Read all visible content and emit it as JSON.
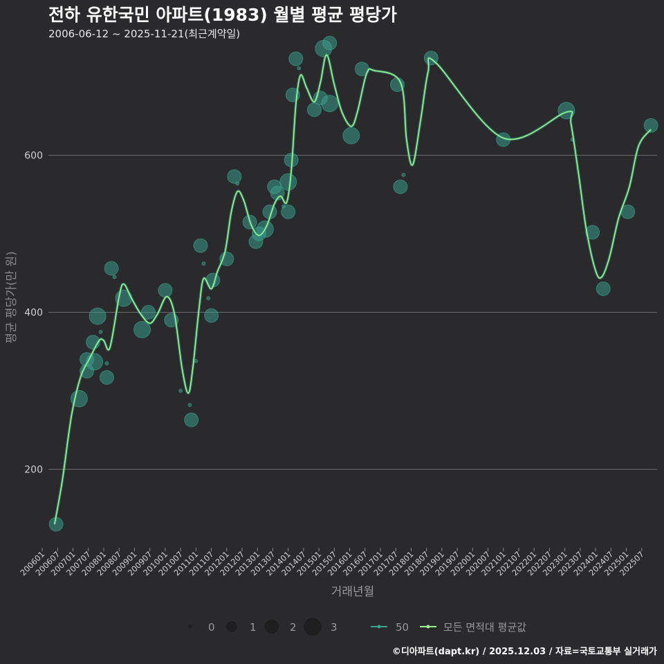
{
  "title": "전하 유한국민 아파트(1983) 월별 평균 평당가",
  "subtitle": "2006-06-12 ~ 2025-11-21(최근계약일)",
  "credit": "©디아파트(dapt.kr) / 2025.12.03 / 자료=국토교통부 실거래가",
  "colors": {
    "background": "#2a2a2c",
    "grid": "#6b6b6b",
    "point": "#3aa391",
    "line": "#9af58a"
  },
  "chart_data": {
    "type": "scatter",
    "title": "전하 유한국민 아파트(1983) 월별 평균 평당가",
    "xlabel": "거래년월",
    "ylabel": "평균 평당가(만 원)",
    "xlim": [
      2006.2,
      2026.0
    ],
    "ylim": [
      100,
      745
    ],
    "yticks": [
      200,
      400,
      600
    ],
    "xticks": [
      {
        "label": "200601",
        "x": 2006.0
      },
      {
        "label": "200607",
        "x": 2006.5
      },
      {
        "label": "200701",
        "x": 2007.0
      },
      {
        "label": "200707",
        "x": 2007.5
      },
      {
        "label": "200801",
        "x": 2008.0
      },
      {
        "label": "200807",
        "x": 2008.5
      },
      {
        "label": "200901",
        "x": 2009.0
      },
      {
        "label": "200907",
        "x": 2009.5
      },
      {
        "label": "201001",
        "x": 2010.0
      },
      {
        "label": "201007",
        "x": 2010.5
      },
      {
        "label": "201101",
        "x": 2011.0
      },
      {
        "label": "201107",
        "x": 2011.5
      },
      {
        "label": "201201",
        "x": 2012.0
      },
      {
        "label": "201207",
        "x": 2012.5
      },
      {
        "label": "201301",
        "x": 2013.0
      },
      {
        "label": "201307",
        "x": 2013.5
      },
      {
        "label": "201401",
        "x": 2014.0
      },
      {
        "label": "201407",
        "x": 2014.5
      },
      {
        "label": "201501",
        "x": 2015.0
      },
      {
        "label": "201507",
        "x": 2015.5
      },
      {
        "label": "201601",
        "x": 2016.0
      },
      {
        "label": "201607",
        "x": 2016.5
      },
      {
        "label": "201701",
        "x": 2017.0
      },
      {
        "label": "201707",
        "x": 2017.5
      },
      {
        "label": "201801",
        "x": 2018.0
      },
      {
        "label": "201807",
        "x": 2018.5
      },
      {
        "label": "201901",
        "x": 2019.0
      },
      {
        "label": "201907",
        "x": 2019.5
      },
      {
        "label": "202001",
        "x": 2020.0
      },
      {
        "label": "202007",
        "x": 2020.5
      },
      {
        "label": "202101",
        "x": 2021.0
      },
      {
        "label": "202107",
        "x": 2021.5
      },
      {
        "label": "202201",
        "x": 2022.0
      },
      {
        "label": "202207",
        "x": 2022.5
      },
      {
        "label": "202301",
        "x": 2023.0
      },
      {
        "label": "202307",
        "x": 2023.5
      },
      {
        "label": "202401",
        "x": 2024.0
      },
      {
        "label": "202407",
        "x": 2024.5
      },
      {
        "label": "202501",
        "x": 2025.0
      },
      {
        "label": "202507",
        "x": 2025.5
      }
    ],
    "points": [
      {
        "x": 2006.45,
        "y": 130,
        "n": 2
      },
      {
        "x": 2007.2,
        "y": 290,
        "n": 3
      },
      {
        "x": 2007.45,
        "y": 325,
        "n": 2
      },
      {
        "x": 2007.45,
        "y": 340,
        "n": 2
      },
      {
        "x": 2007.65,
        "y": 362,
        "n": 2
      },
      {
        "x": 2007.7,
        "y": 337,
        "n": 3
      },
      {
        "x": 2007.8,
        "y": 395,
        "n": 3
      },
      {
        "x": 2007.9,
        "y": 375,
        "n": 0
      },
      {
        "x": 2008.1,
        "y": 335,
        "n": 0
      },
      {
        "x": 2008.1,
        "y": 317,
        "n": 2
      },
      {
        "x": 2008.25,
        "y": 456,
        "n": 2
      },
      {
        "x": 2008.35,
        "y": 445,
        "n": 0
      },
      {
        "x": 2008.65,
        "y": 418,
        "n": 3
      },
      {
        "x": 2009.25,
        "y": 378,
        "n": 3
      },
      {
        "x": 2009.45,
        "y": 400,
        "n": 2
      },
      {
        "x": 2010.0,
        "y": 428,
        "n": 2
      },
      {
        "x": 2010.2,
        "y": 390,
        "n": 2
      },
      {
        "x": 2010.5,
        "y": 300,
        "n": 0
      },
      {
        "x": 2010.8,
        "y": 282,
        "n": 0
      },
      {
        "x": 2010.85,
        "y": 263,
        "n": 2
      },
      {
        "x": 2011.0,
        "y": 338,
        "n": 0
      },
      {
        "x": 2011.15,
        "y": 485,
        "n": 2
      },
      {
        "x": 2011.25,
        "y": 462,
        "n": 0
      },
      {
        "x": 2011.4,
        "y": 418,
        "n": 0
      },
      {
        "x": 2011.5,
        "y": 396,
        "n": 2
      },
      {
        "x": 2011.55,
        "y": 441,
        "n": 2
      },
      {
        "x": 2012.0,
        "y": 468,
        "n": 2
      },
      {
        "x": 2012.25,
        "y": 573,
        "n": 2
      },
      {
        "x": 2012.35,
        "y": 564,
        "n": 0
      },
      {
        "x": 2012.75,
        "y": 515,
        "n": 2
      },
      {
        "x": 2012.95,
        "y": 490,
        "n": 2
      },
      {
        "x": 2013.05,
        "y": 500,
        "n": 2
      },
      {
        "x": 2013.25,
        "y": 506,
        "n": 3
      },
      {
        "x": 2013.4,
        "y": 528,
        "n": 2
      },
      {
        "x": 2013.55,
        "y": 560,
        "n": 2
      },
      {
        "x": 2013.65,
        "y": 552,
        "n": 2
      },
      {
        "x": 2013.85,
        "y": 535,
        "n": 0
      },
      {
        "x": 2014.0,
        "y": 528,
        "n": 2
      },
      {
        "x": 2014.0,
        "y": 566,
        "n": 3
      },
      {
        "x": 2014.1,
        "y": 594,
        "n": 2
      },
      {
        "x": 2014.15,
        "y": 677,
        "n": 2
      },
      {
        "x": 2014.25,
        "y": 723,
        "n": 2
      },
      {
        "x": 2014.35,
        "y": 711,
        "n": 0
      },
      {
        "x": 2014.85,
        "y": 658,
        "n": 2
      },
      {
        "x": 2015.05,
        "y": 673,
        "n": 2
      },
      {
        "x": 2015.15,
        "y": 736,
        "n": 3
      },
      {
        "x": 2015.35,
        "y": 743,
        "n": 2
      },
      {
        "x": 2015.35,
        "y": 666,
        "n": 3
      },
      {
        "x": 2016.05,
        "y": 625,
        "n": 3
      },
      {
        "x": 2016.4,
        "y": 710,
        "n": 2
      },
      {
        "x": 2017.55,
        "y": 690,
        "n": 2
      },
      {
        "x": 2017.65,
        "y": 560,
        "n": 2
      },
      {
        "x": 2017.75,
        "y": 575,
        "n": 0
      },
      {
        "x": 2018.65,
        "y": 724,
        "n": 2
      },
      {
        "x": 2021.0,
        "y": 620,
        "n": 2
      },
      {
        "x": 2023.05,
        "y": 657,
        "n": 3
      },
      {
        "x": 2023.25,
        "y": 620,
        "n": 0
      },
      {
        "x": 2023.9,
        "y": 502,
        "n": 2
      },
      {
        "x": 2024.25,
        "y": 430,
        "n": 2
      },
      {
        "x": 2025.05,
        "y": 528,
        "n": 2
      },
      {
        "x": 2025.8,
        "y": 638,
        "n": 2
      }
    ],
    "trend": [
      {
        "x": 2006.4,
        "y": 130
      },
      {
        "x": 2006.65,
        "y": 185
      },
      {
        "x": 2006.95,
        "y": 268
      },
      {
        "x": 2007.25,
        "y": 318
      },
      {
        "x": 2007.55,
        "y": 342
      },
      {
        "x": 2007.85,
        "y": 364
      },
      {
        "x": 2008.0,
        "y": 364
      },
      {
        "x": 2008.2,
        "y": 355
      },
      {
        "x": 2008.5,
        "y": 420
      },
      {
        "x": 2008.65,
        "y": 436
      },
      {
        "x": 2008.9,
        "y": 418
      },
      {
        "x": 2009.2,
        "y": 398
      },
      {
        "x": 2009.5,
        "y": 386
      },
      {
        "x": 2009.75,
        "y": 398
      },
      {
        "x": 2010.05,
        "y": 420
      },
      {
        "x": 2010.3,
        "y": 398
      },
      {
        "x": 2010.55,
        "y": 328
      },
      {
        "x": 2010.75,
        "y": 297
      },
      {
        "x": 2010.9,
        "y": 330
      },
      {
        "x": 2011.1,
        "y": 405
      },
      {
        "x": 2011.25,
        "y": 443
      },
      {
        "x": 2011.5,
        "y": 430
      },
      {
        "x": 2011.7,
        "y": 452
      },
      {
        "x": 2011.95,
        "y": 478
      },
      {
        "x": 2012.15,
        "y": 528
      },
      {
        "x": 2012.35,
        "y": 554
      },
      {
        "x": 2012.55,
        "y": 543
      },
      {
        "x": 2012.8,
        "y": 511
      },
      {
        "x": 2013.05,
        "y": 498
      },
      {
        "x": 2013.3,
        "y": 510
      },
      {
        "x": 2013.55,
        "y": 538
      },
      {
        "x": 2013.75,
        "y": 548
      },
      {
        "x": 2013.95,
        "y": 540
      },
      {
        "x": 2014.1,
        "y": 580
      },
      {
        "x": 2014.25,
        "y": 665
      },
      {
        "x": 2014.4,
        "y": 702
      },
      {
        "x": 2014.6,
        "y": 686
      },
      {
        "x": 2014.85,
        "y": 668
      },
      {
        "x": 2015.05,
        "y": 693
      },
      {
        "x": 2015.25,
        "y": 728
      },
      {
        "x": 2015.5,
        "y": 690
      },
      {
        "x": 2015.75,
        "y": 655
      },
      {
        "x": 2016.05,
        "y": 637
      },
      {
        "x": 2016.25,
        "y": 655
      },
      {
        "x": 2016.55,
        "y": 704
      },
      {
        "x": 2016.8,
        "y": 708
      },
      {
        "x": 2017.65,
        "y": 693
      },
      {
        "x": 2017.85,
        "y": 620
      },
      {
        "x": 2018.05,
        "y": 588
      },
      {
        "x": 2018.3,
        "y": 643
      },
      {
        "x": 2018.55,
        "y": 706
      },
      {
        "x": 2018.8,
        "y": 718
      },
      {
        "x": 2021.0,
        "y": 622
      },
      {
        "x": 2023.05,
        "y": 655
      },
      {
        "x": 2023.2,
        "y": 640
      },
      {
        "x": 2023.45,
        "y": 575
      },
      {
        "x": 2023.7,
        "y": 505
      },
      {
        "x": 2024.0,
        "y": 453
      },
      {
        "x": 2024.2,
        "y": 445
      },
      {
        "x": 2024.45,
        "y": 470
      },
      {
        "x": 2024.75,
        "y": 520
      },
      {
        "x": 2025.1,
        "y": 560
      },
      {
        "x": 2025.4,
        "y": 612
      },
      {
        "x": 2025.8,
        "y": 633
      }
    ],
    "legend": {
      "size_labels": [
        "0",
        "1",
        "2",
        "3"
      ],
      "point_label": "50",
      "line_label": "모든 면적대 평균값"
    }
  }
}
